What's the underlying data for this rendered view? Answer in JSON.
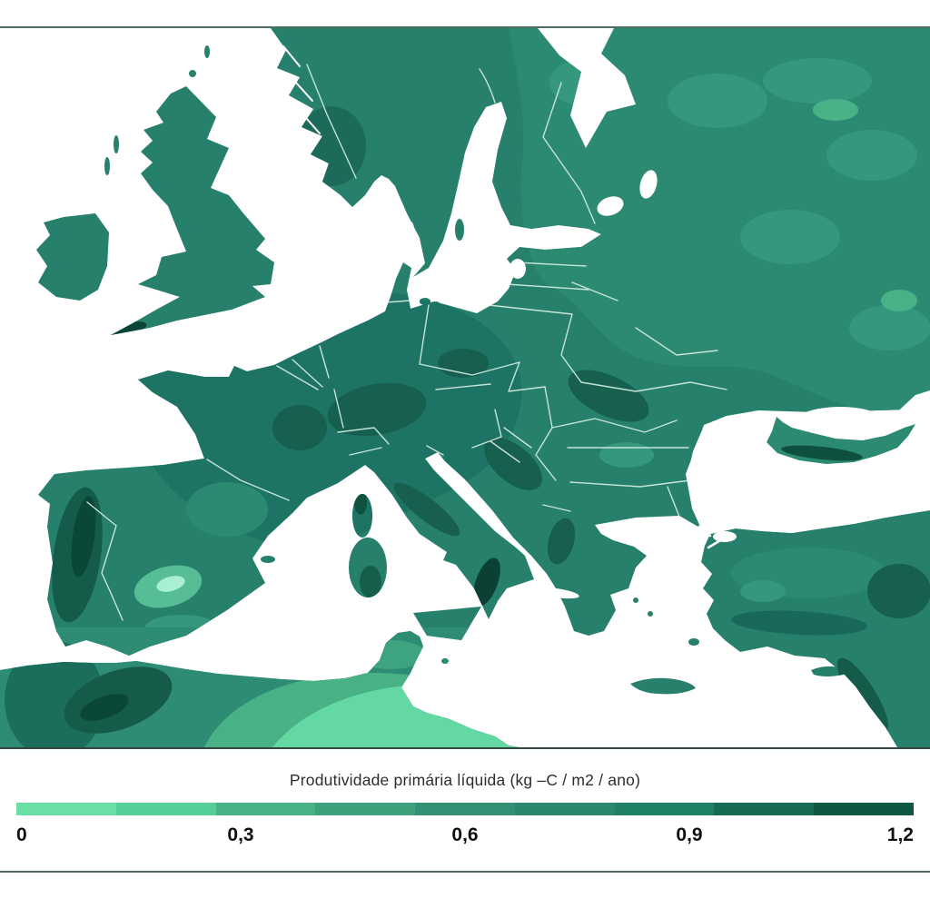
{
  "page": {
    "top_rule_color": "#4b6e62",
    "bottom_rule_color": "#4b6e62",
    "background": "#ffffff"
  },
  "map": {
    "depicts": "choropleth-of-europe-and-north-africa",
    "sea_color": "#ffffff",
    "country_border_color": "#cfeade",
    "land_base_color": "#26806b",
    "shade_colors": [
      "#0a4739",
      "#145b4a",
      "#175f4f",
      "#1e7464",
      "#26806b",
      "#2d8a72",
      "#35977d",
      "#48b286",
      "#63d8a2",
      "#a9efd1"
    ]
  },
  "legend": {
    "title": "Produtividade primária líquida (kg –C / m2 / ano)",
    "ticks": [
      "0",
      "0,3",
      "0,6",
      "0,9",
      "1,2"
    ],
    "segments": [
      "#69dfa6",
      "#55cf98",
      "#48b286",
      "#3fa07c",
      "#349176",
      "#2b886e",
      "#208066",
      "#166b54",
      "#0e5843"
    ]
  }
}
